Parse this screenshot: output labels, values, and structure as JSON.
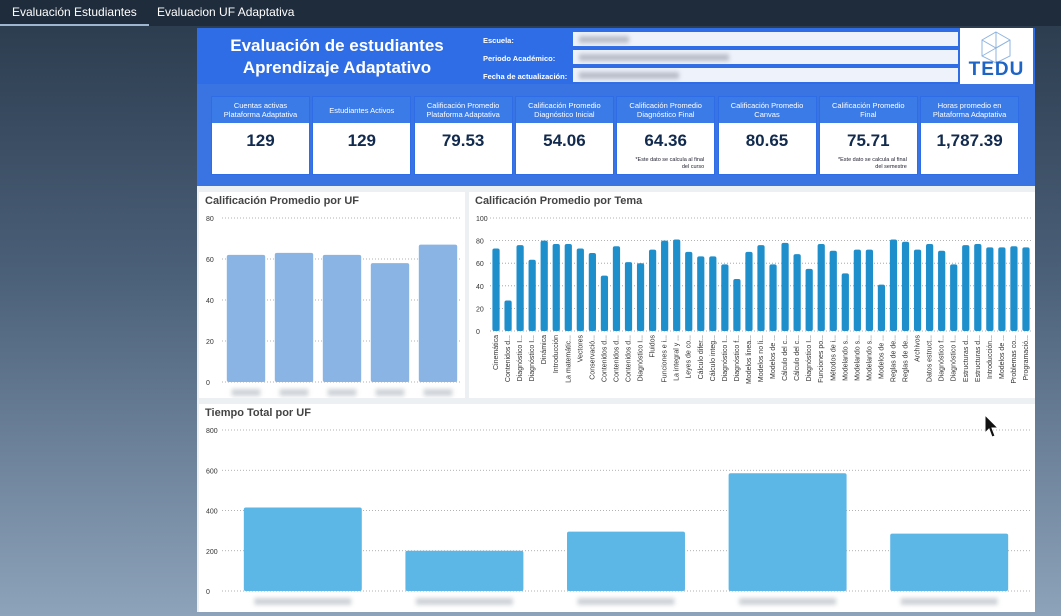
{
  "tabs": [
    "Evaluación Estudiantes",
    "Evaluacion  UF  Adaptativa"
  ],
  "header": {
    "title_line1": "Evaluación de estudiantes",
    "title_line2": "Aprendizaje Adaptativo",
    "fields": [
      "Escuela:",
      "Periodo Académico:",
      "Fecha de actualización:"
    ],
    "logo": "TEDU"
  },
  "kpis": [
    {
      "label": "Cuentas activas Plataforma Adaptativa",
      "value": "129"
    },
    {
      "label": "Estudiantes Activos",
      "value": "129"
    },
    {
      "label": "Calificación Promedio Plataforma Adaptativa",
      "value": "79.53"
    },
    {
      "label": "Calificación Promedio Diagnóstico Inicial",
      "value": "54.06"
    },
    {
      "label": "Calificación Promedio Diagnóstico Final",
      "value": "64.36",
      "note": "*Este dato se calcula al final del curso"
    },
    {
      "label": "Calificación Promedio Canvas",
      "value": "80.65"
    },
    {
      "label": "Calificación Promedio Final",
      "value": "75.71",
      "note": "*Este dato se calcula al final del semestre"
    },
    {
      "label": "Horas promedio en Plataforma Adaptativa",
      "value": "1,787.39"
    }
  ],
  "charts": [
    {
      "type": "bar",
      "title": "Calificación Promedio por UF",
      "categories": [
        null,
        null,
        null,
        null,
        null
      ],
      "values": [
        62,
        63,
        62,
        58,
        67
      ],
      "color": "#8ab4e3",
      "ylim": [
        0,
        80
      ],
      "yticks": [
        0,
        20,
        40,
        60,
        80
      ],
      "grid": true
    },
    {
      "type": "bar",
      "title": "Calificación Promedio por Tema",
      "categories": [
        "Cinemática",
        "Contenidos d...",
        "Diagnóstico I...",
        "Diagnóstico I...",
        "Dinámica",
        "Introducción",
        "La matemátic...",
        "Vectores",
        "Conservació...",
        "Contenidos d...",
        "Contenidos d...",
        "Contenidos d...",
        "Diagnóstico I...",
        "Fluidos",
        "Funciones e i...",
        "La integral y ...",
        "Leyes de co...",
        "Cálculo difer...",
        "Cálculo integ...",
        "Diagnóstico I...",
        "Diagnóstico f...",
        "Modelos linea...",
        "Modelos no li...",
        "Modelos de ...",
        "Cálculo del c...",
        "Cálculo del c...",
        "Diagnóstico I...",
        "Funciones po...",
        "Métodos de i...",
        "Modelando s...",
        "Modelando s...",
        "Modelando s...",
        "Modelos de ...",
        "Reglas de de...",
        "Reglas de de...",
        "Archivos",
        "Datos estruct...",
        "Diagnóstico f...",
        "Diagnóstico I...",
        "Estructuras d...",
        "Estructuras d...",
        "Introducción...",
        "Modelos de ...",
        "Problemas co...",
        "Programació..."
      ],
      "values": [
        73,
        27,
        76,
        63,
        80,
        77,
        77,
        73,
        69,
        49,
        75,
        61,
        60,
        72,
        80,
        81,
        70,
        66,
        66,
        59,
        46,
        70,
        76,
        59,
        78,
        68,
        55,
        77,
        71,
        51,
        72,
        72,
        41,
        81,
        79,
        72,
        77,
        71,
        59,
        76,
        77,
        74,
        74,
        75,
        74
      ],
      "color": "#1f8fcc",
      "ylim": [
        0,
        100
      ],
      "yticks": [
        0,
        20,
        40,
        60,
        80,
        100
      ],
      "grid": true
    },
    {
      "type": "bar",
      "title": "Tiempo Total por UF",
      "categories": [
        null,
        null,
        null,
        null,
        null
      ],
      "values": [
        415,
        200,
        295,
        585,
        285
      ],
      "color": "#5cb6e6",
      "ylim": [
        0,
        800
      ],
      "yticks": [
        0,
        200,
        400,
        600,
        800
      ],
      "grid": true
    }
  ]
}
